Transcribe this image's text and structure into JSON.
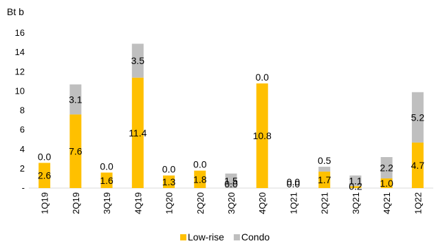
{
  "chart_data": {
    "type": "bar",
    "stacked": true,
    "unit_label": "Bt b",
    "categories": [
      "1Q19",
      "2Q19",
      "3Q19",
      "4Q19",
      "1Q20",
      "2Q20",
      "3Q20",
      "4Q20",
      "1Q21",
      "2Q21",
      "3Q21",
      "4Q21",
      "1Q22"
    ],
    "series": [
      {
        "name": "Low-rise",
        "color": "#FFC000",
        "values": [
          2.6,
          7.6,
          1.6,
          11.4,
          1.3,
          1.8,
          0.0,
          10.8,
          0.0,
          1.7,
          0.2,
          1.0,
          4.7
        ]
      },
      {
        "name": "Condo",
        "color": "#BFBFBF",
        "values": [
          0.0,
          3.1,
          0.0,
          3.5,
          0.0,
          0.0,
          1.5,
          0.0,
          0.0,
          0.5,
          1.1,
          2.2,
          5.2
        ]
      }
    ],
    "y_ticks": [
      "-",
      "2",
      "4",
      "6",
      "8",
      "10",
      "12",
      "14",
      "16"
    ],
    "ylim": [
      0,
      16
    ],
    "grid": false,
    "legend": "bottom"
  }
}
